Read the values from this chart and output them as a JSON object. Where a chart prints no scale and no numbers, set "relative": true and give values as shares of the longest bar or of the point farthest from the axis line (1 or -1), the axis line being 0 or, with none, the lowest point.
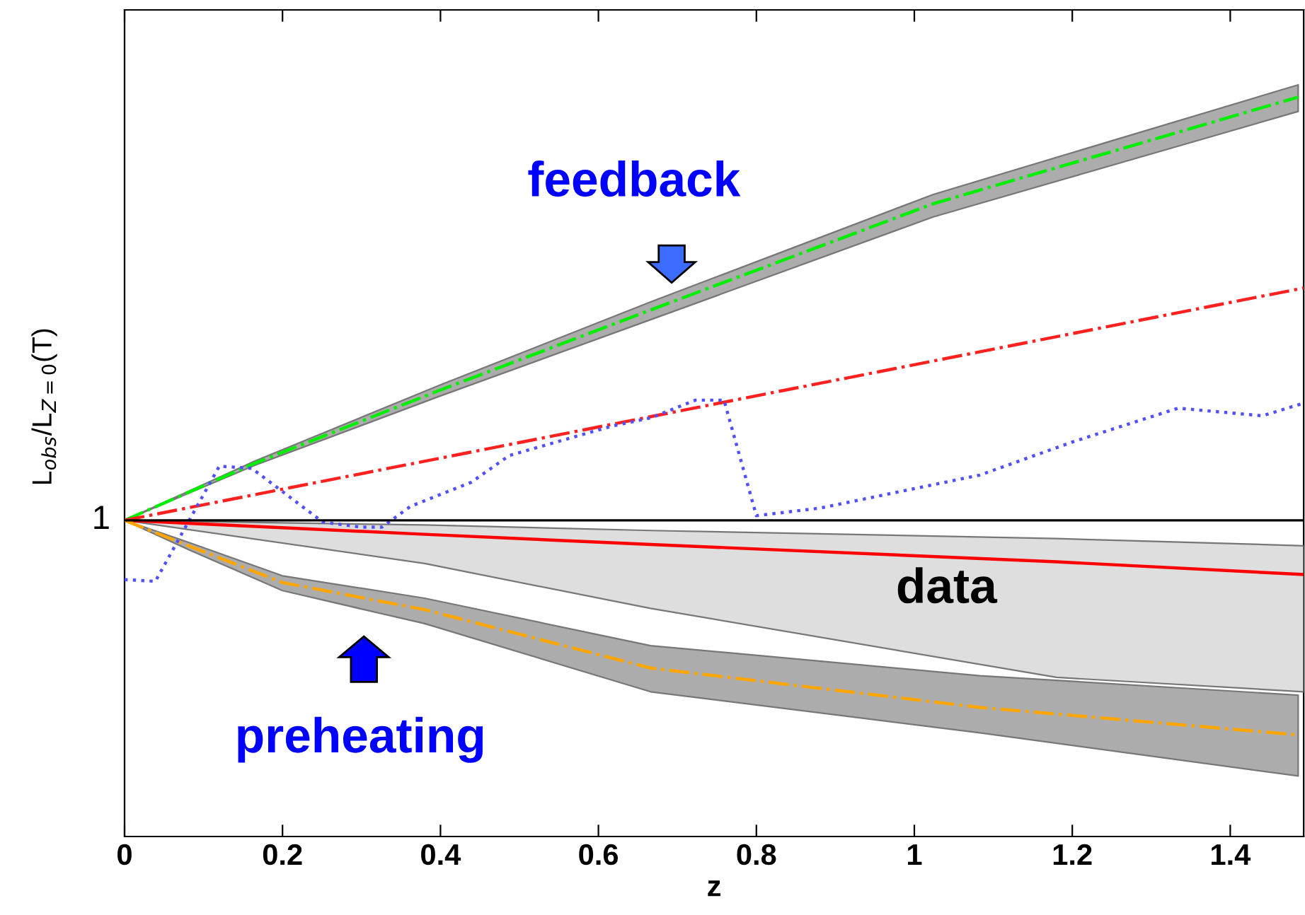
{
  "chart_data": {
    "type": "line",
    "relative": true,
    "xlabel": "z",
    "ylabel": "L$_{obs}$/L$_{Z=0}$(T)",
    "xlim": [
      0,
      1.493
    ],
    "xticks": [
      0,
      0.2,
      0.4,
      0.6,
      0.8,
      1,
      1.2,
      1.4
    ],
    "grid": false,
    "legend": false,
    "ref_lines": [
      {
        "axis": "y",
        "value": 0,
        "color": "#000000",
        "line_style": "solid"
      }
    ],
    "annotations": [
      "feedback",
      "preheating",
      "data",
      "1"
    ],
    "series": [
      {
        "color": "#00ee00",
        "line_style": "dashdot",
        "x": [
          0,
          0.165,
          0.4,
          0.666,
          1.024,
          1.486
        ],
        "values": [
          0,
          0.135,
          0.308,
          0.497,
          0.748,
          1
        ],
        "lower": [
          0,
          0.13,
          0.294,
          0.474,
          0.717,
          0.966
        ],
        "upper": [
          0,
          0.14,
          0.32,
          0.516,
          0.77,
          1.029
        ]
      },
      {
        "color": "#ff2020",
        "line_style": "dashdot",
        "x": [
          0,
          1.493
        ],
        "values": [
          0,
          0.549
        ]
      },
      {
        "color": "#ff0000",
        "line_style": "solid",
        "x": [
          0,
          0.38,
          0.666,
          1.18,
          1.493
        ],
        "values": [
          0,
          -0.033,
          -0.057,
          -0.098,
          -0.128
        ],
        "lower": [
          0,
          -0.102,
          -0.208,
          -0.371,
          -0.405
        ],
        "upper": [
          0,
          -0.011,
          -0.024,
          -0.043,
          -0.06
        ]
      },
      {
        "color": "#ffa500",
        "line_style": "dashdot",
        "x": [
          0,
          0.081,
          0.2,
          0.38,
          0.666,
          1.083,
          1.486
        ],
        "values": [
          0,
          -0.06,
          -0.147,
          -0.211,
          -0.349,
          -0.442,
          -0.507
        ],
        "lower": [
          0,
          -0.069,
          -0.166,
          -0.244,
          -0.405,
          -0.502,
          -0.604
        ],
        "upper": [
          0,
          -0.052,
          -0.131,
          -0.184,
          -0.296,
          -0.367,
          -0.413
        ]
      },
      {
        "color": "#5050ff",
        "line_style": "dotted",
        "x": [
          0,
          0.039,
          0.12,
          0.161,
          0.251,
          0.299,
          0.326,
          0.362,
          0.439,
          0.487,
          0.618,
          0.666,
          0.723,
          0.759,
          0.8,
          0.881,
          1.083,
          1.203,
          1.334,
          1.441,
          1.493
        ],
        "values": [
          -0.14,
          -0.144,
          0.128,
          0.123,
          -0.004,
          -0.016,
          -0.016,
          0.033,
          0.09,
          0.153,
          0.223,
          0.242,
          0.284,
          0.284,
          0.011,
          0.029,
          0.107,
          0.187,
          0.265,
          0.247,
          0.277
        ]
      }
    ]
  }
}
